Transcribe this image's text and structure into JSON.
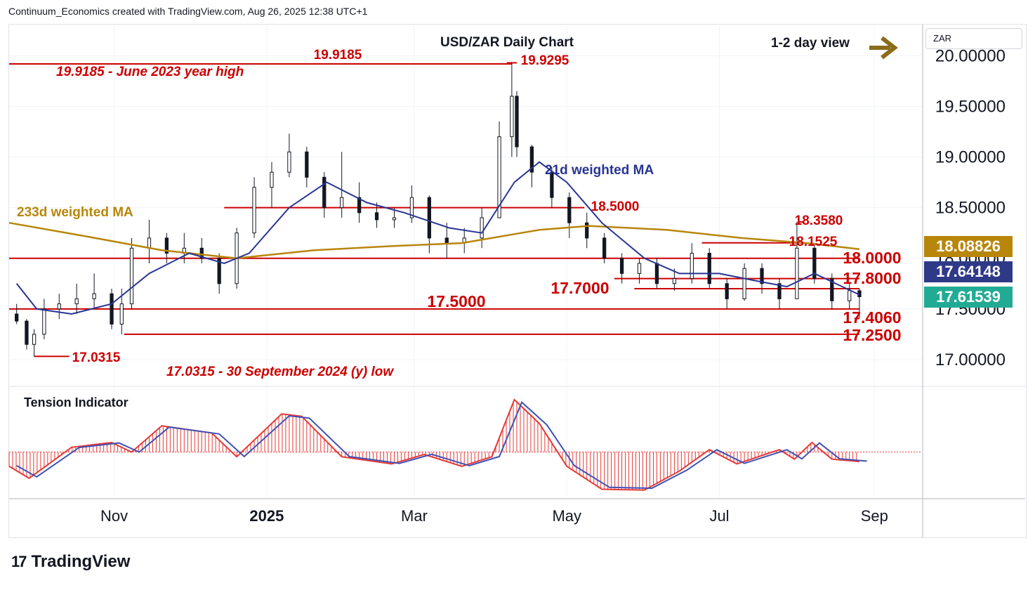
{
  "header": {
    "text": "Continuum_Economics created with TradingView.com, Aug 26, 2025 12:38 UTC+1"
  },
  "currency_box": {
    "label": "ZAR"
  },
  "footer": {
    "brand": "TradingView",
    "mark": "17"
  },
  "view": {
    "label": "1-2 day view",
    "arrow_color": "#8a6d1a"
  },
  "colors": {
    "bull": "#26a69a",
    "candle": "#131722",
    "ma21": "#283593",
    "ma233": "#b8860b",
    "level": "#cc0000",
    "tension_hist": "#e53935",
    "tension_line": "#3f51b5",
    "tag_233": "#b8860b",
    "tag_21": "#2e3a87",
    "tag_last": "#22ab94"
  },
  "price_tags": {
    "ma233": {
      "value": "18.08826",
      "price": 18.08826
    },
    "ma21": {
      "value": "17.64148",
      "price": 17.64148
    },
    "last": {
      "value": "17.61539",
      "price": 17.61539
    }
  },
  "chart_data": [
    {
      "type": "candlestick",
      "title": "USD/ZAR Daily Chart",
      "y_axis": {
        "ticks": [
          20.0,
          19.5,
          19.0,
          18.5,
          18.0,
          17.5,
          17.0
        ],
        "tick_labels": [
          "20.00000",
          "19.50000",
          "19.00000",
          "18.50000",
          "18.00000",
          "17.50000",
          "17.00000"
        ],
        "range": [
          16.75,
          20.3
        ],
        "position": "right"
      },
      "x_axis": {
        "labels": [
          "Nov",
          "2025",
          "Mar",
          "May",
          "Jul",
          "Sep"
        ],
        "dates": [
          "2024-11-01",
          "2025-01-01",
          "2025-03-01",
          "2025-05-01",
          "2025-07-01",
          "2025-09-01"
        ],
        "range": [
          "2024-09-20",
          "2025-09-20"
        ]
      },
      "candles_approx": [
        {
          "date": "2024-09-23",
          "open": 17.45,
          "high": 17.55,
          "low": 17.35,
          "close": 17.38
        },
        {
          "date": "2024-09-27",
          "open": 17.38,
          "high": 17.4,
          "low": 17.1,
          "close": 17.15
        },
        {
          "date": "2024-09-30",
          "open": 17.15,
          "high": 17.3,
          "low": 17.03,
          "close": 17.25
        },
        {
          "date": "2024-10-04",
          "open": 17.25,
          "high": 17.6,
          "low": 17.2,
          "close": 17.5
        },
        {
          "date": "2024-10-10",
          "open": 17.5,
          "high": 17.65,
          "low": 17.4,
          "close": 17.55
        },
        {
          "date": "2024-10-17",
          "open": 17.55,
          "high": 17.75,
          "low": 17.45,
          "close": 17.6
        },
        {
          "date": "2024-10-24",
          "open": 17.6,
          "high": 17.85,
          "low": 17.5,
          "close": 17.65
        },
        {
          "date": "2024-10-31",
          "open": 17.65,
          "high": 17.7,
          "low": 17.3,
          "close": 17.35
        },
        {
          "date": "2024-11-04",
          "open": 17.35,
          "high": 17.7,
          "low": 17.25,
          "close": 17.55
        },
        {
          "date": "2024-11-08",
          "open": 17.55,
          "high": 18.2,
          "low": 17.5,
          "close": 18.1
        },
        {
          "date": "2024-11-15",
          "open": 18.1,
          "high": 18.38,
          "low": 17.95,
          "close": 18.2
        },
        {
          "date": "2024-11-22",
          "open": 18.2,
          "high": 18.25,
          "low": 17.95,
          "close": 18.05
        },
        {
          "date": "2024-11-29",
          "open": 18.05,
          "high": 18.25,
          "low": 17.95,
          "close": 18.1
        },
        {
          "date": "2024-12-06",
          "open": 18.1,
          "high": 18.2,
          "low": 17.95,
          "close": 18.0
        },
        {
          "date": "2024-12-13",
          "open": 18.0,
          "high": 18.05,
          "low": 17.65,
          "close": 17.75
        },
        {
          "date": "2024-12-20",
          "open": 17.75,
          "high": 18.3,
          "low": 17.7,
          "close": 18.25
        },
        {
          "date": "2024-12-27",
          "open": 18.25,
          "high": 18.8,
          "low": 18.2,
          "close": 18.7
        },
        {
          "date": "2025-01-03",
          "open": 18.7,
          "high": 18.95,
          "low": 18.5,
          "close": 18.85
        },
        {
          "date": "2025-01-10",
          "open": 18.85,
          "high": 19.23,
          "low": 18.8,
          "close": 19.05
        },
        {
          "date": "2025-01-17",
          "open": 19.05,
          "high": 19.1,
          "low": 18.7,
          "close": 18.8
        },
        {
          "date": "2025-01-24",
          "open": 18.8,
          "high": 18.85,
          "low": 18.4,
          "close": 18.5
        },
        {
          "date": "2025-01-31",
          "open": 18.5,
          "high": 19.05,
          "low": 18.4,
          "close": 18.6
        },
        {
          "date": "2025-02-07",
          "open": 18.6,
          "high": 18.75,
          "low": 18.35,
          "close": 18.45
        },
        {
          "date": "2025-02-14",
          "open": 18.45,
          "high": 18.55,
          "low": 18.3,
          "close": 18.38
        },
        {
          "date": "2025-02-21",
          "open": 18.38,
          "high": 18.5,
          "low": 18.3,
          "close": 18.4
        },
        {
          "date": "2025-02-28",
          "open": 18.4,
          "high": 18.72,
          "low": 18.35,
          "close": 18.6
        },
        {
          "date": "2025-03-07",
          "open": 18.6,
          "high": 18.62,
          "low": 18.05,
          "close": 18.2
        },
        {
          "date": "2025-03-14",
          "open": 18.2,
          "high": 18.35,
          "low": 18.0,
          "close": 18.15
        },
        {
          "date": "2025-03-21",
          "open": 18.15,
          "high": 18.3,
          "low": 18.05,
          "close": 18.2
        },
        {
          "date": "2025-03-28",
          "open": 18.2,
          "high": 18.5,
          "low": 18.1,
          "close": 18.4
        },
        {
          "date": "2025-04-04",
          "open": 18.4,
          "high": 19.35,
          "low": 18.4,
          "close": 19.2
        },
        {
          "date": "2025-04-09",
          "open": 19.2,
          "high": 19.93,
          "low": 19.0,
          "close": 19.6
        },
        {
          "date": "2025-04-11",
          "open": 19.6,
          "high": 19.65,
          "low": 19.0,
          "close": 19.1
        },
        {
          "date": "2025-04-17",
          "open": 19.1,
          "high": 19.12,
          "low": 18.7,
          "close": 18.85
        },
        {
          "date": "2025-04-25",
          "open": 18.85,
          "high": 18.9,
          "low": 18.5,
          "close": 18.6
        },
        {
          "date": "2025-05-02",
          "open": 18.6,
          "high": 18.65,
          "low": 18.2,
          "close": 18.35
        },
        {
          "date": "2025-05-09",
          "open": 18.35,
          "high": 18.45,
          "low": 18.1,
          "close": 18.2
        },
        {
          "date": "2025-05-16",
          "open": 18.2,
          "high": 18.25,
          "low": 17.95,
          "close": 18.0
        },
        {
          "date": "2025-05-23",
          "open": 18.0,
          "high": 18.05,
          "low": 17.75,
          "close": 17.85
        },
        {
          "date": "2025-05-30",
          "open": 17.85,
          "high": 18.0,
          "low": 17.75,
          "close": 17.95
        },
        {
          "date": "2025-06-06",
          "open": 17.95,
          "high": 18.0,
          "low": 17.7,
          "close": 17.75
        },
        {
          "date": "2025-06-13",
          "open": 17.75,
          "high": 17.9,
          "low": 17.68,
          "close": 17.8
        },
        {
          "date": "2025-06-20",
          "open": 17.8,
          "high": 18.15,
          "low": 17.75,
          "close": 18.05
        },
        {
          "date": "2025-06-27",
          "open": 18.05,
          "high": 18.1,
          "low": 17.7,
          "close": 17.75
        },
        {
          "date": "2025-07-04",
          "open": 17.75,
          "high": 17.8,
          "low": 17.5,
          "close": 17.6
        },
        {
          "date": "2025-07-11",
          "open": 17.6,
          "high": 17.95,
          "low": 17.58,
          "close": 17.9
        },
        {
          "date": "2025-07-18",
          "open": 17.9,
          "high": 17.95,
          "low": 17.65,
          "close": 17.75
        },
        {
          "date": "2025-07-25",
          "open": 17.75,
          "high": 17.8,
          "low": 17.5,
          "close": 17.6
        },
        {
          "date": "2025-08-01",
          "open": 17.6,
          "high": 18.36,
          "low": 17.6,
          "close": 18.1
        },
        {
          "date": "2025-08-08",
          "open": 18.1,
          "high": 18.15,
          "low": 17.75,
          "close": 17.8
        },
        {
          "date": "2025-08-15",
          "open": 17.8,
          "high": 17.85,
          "low": 17.5,
          "close": 17.58
        },
        {
          "date": "2025-08-22",
          "open": 17.58,
          "high": 17.75,
          "low": 17.5,
          "close": 17.68
        },
        {
          "date": "2025-08-26",
          "open": 17.68,
          "high": 17.7,
          "low": 17.41,
          "close": 17.62
        }
      ],
      "ma21_approx": [
        {
          "date": "2024-09-23",
          "value": 17.75
        },
        {
          "date": "2024-10-01",
          "value": 17.5
        },
        {
          "date": "2024-10-15",
          "value": 17.45
        },
        {
          "date": "2024-10-31",
          "value": 17.55
        },
        {
          "date": "2024-11-15",
          "value": 17.85
        },
        {
          "date": "2024-12-01",
          "value": 18.05
        },
        {
          "date": "2024-12-15",
          "value": 17.95
        },
        {
          "date": "2024-12-25",
          "value": 18.05
        },
        {
          "date": "2025-01-10",
          "value": 18.5
        },
        {
          "date": "2025-01-25",
          "value": 18.75
        },
        {
          "date": "2025-02-10",
          "value": 18.55
        },
        {
          "date": "2025-02-25",
          "value": 18.45
        },
        {
          "date": "2025-03-15",
          "value": 18.3
        },
        {
          "date": "2025-03-28",
          "value": 18.25
        },
        {
          "date": "2025-04-10",
          "value": 18.75
        },
        {
          "date": "2025-04-20",
          "value": 18.95
        },
        {
          "date": "2025-05-01",
          "value": 18.75
        },
        {
          "date": "2025-05-15",
          "value": 18.35
        },
        {
          "date": "2025-06-01",
          "value": 18.0
        },
        {
          "date": "2025-06-15",
          "value": 17.85
        },
        {
          "date": "2025-07-01",
          "value": 17.85
        },
        {
          "date": "2025-07-15",
          "value": 17.78
        },
        {
          "date": "2025-07-28",
          "value": 17.72
        },
        {
          "date": "2025-08-08",
          "value": 17.85
        },
        {
          "date": "2025-08-26",
          "value": 17.64
        }
      ],
      "ma233_approx": [
        {
          "date": "2024-09-20",
          "value": 18.35
        },
        {
          "date": "2024-10-20",
          "value": 18.22
        },
        {
          "date": "2024-11-20",
          "value": 18.08
        },
        {
          "date": "2024-12-20",
          "value": 18.0
        },
        {
          "date": "2025-01-20",
          "value": 18.08
        },
        {
          "date": "2025-02-20",
          "value": 18.12
        },
        {
          "date": "2025-03-20",
          "value": 18.15
        },
        {
          "date": "2025-04-20",
          "value": 18.28
        },
        {
          "date": "2025-05-10",
          "value": 18.32
        },
        {
          "date": "2025-06-10",
          "value": 18.28
        },
        {
          "date": "2025-07-10",
          "value": 18.2
        },
        {
          "date": "2025-08-05",
          "value": 18.15
        },
        {
          "date": "2025-08-26",
          "value": 18.09
        }
      ],
      "levels": [
        {
          "price": 19.9185,
          "label": "19.9185",
          "from": "2024-09-20",
          "to": "2025-04-09"
        },
        {
          "price": 19.9295,
          "label": "19.9295",
          "from": "2025-04-07",
          "to": "2025-04-11"
        },
        {
          "price": 18.5,
          "label": "18.5000",
          "from": "2024-12-15",
          "to": "2025-05-08"
        },
        {
          "price": 18.358,
          "label": "18.3580",
          "from": "2025-08-02",
          "to": "2025-08-04"
        },
        {
          "price": 18.1525,
          "label": "18.1525",
          "from": "2025-06-24",
          "to": "2025-08-04"
        },
        {
          "price": 18.0,
          "label": "18.0000",
          "from": "2024-09-20",
          "to": "2025-08-26"
        },
        {
          "price": 17.8,
          "label": "17.8000",
          "from": "2025-05-20",
          "to": "2025-08-26"
        },
        {
          "price": 17.7,
          "label": "17.7000",
          "from": "2025-05-28",
          "to": "2025-08-26"
        },
        {
          "price": 17.5,
          "label": "17.5000",
          "from": "2024-09-20",
          "to": "2025-08-26"
        },
        {
          "price": 17.406,
          "label": "17.4060",
          "from": "2025-08-24",
          "to": "2025-08-26"
        },
        {
          "price": 17.25,
          "label": "17.2500",
          "from": "2024-11-05",
          "to": "2025-08-26"
        },
        {
          "price": 17.0315,
          "label": "17.0315",
          "from": "2024-09-30",
          "to": "2024-10-14"
        }
      ],
      "annotations": [
        {
          "text": "19.9185 - June 2023 year high",
          "color": "#cc0000"
        },
        {
          "text": "17.0315 - 30 September 2024 (y) low",
          "color": "#cc0000"
        },
        {
          "text": "21d weighted MA",
          "color": "#283593"
        },
        {
          "text": "233d weighted MA",
          "color": "#b8860b"
        }
      ]
    },
    {
      "type": "area",
      "title": "Tension Indicator",
      "series": [
        {
          "name": "",
          "values_approx": [
            {
              "date": "2024-09-20",
              "value": -0.3
            },
            {
              "date": "2024-09-28",
              "value": -0.55
            },
            {
              "date": "2024-10-15",
              "value": 0.1
            },
            {
              "date": "2024-10-31",
              "value": 0.2
            },
            {
              "date": "2024-11-08",
              "value": 0.0
            },
            {
              "date": "2024-11-20",
              "value": 0.55
            },
            {
              "date": "2024-12-10",
              "value": 0.4
            },
            {
              "date": "2024-12-20",
              "value": -0.1
            },
            {
              "date": "2025-01-07",
              "value": 0.8
            },
            {
              "date": "2025-01-15",
              "value": 0.75
            },
            {
              "date": "2025-01-31",
              "value": -0.1
            },
            {
              "date": "2025-02-20",
              "value": -0.25
            },
            {
              "date": "2025-03-05",
              "value": -0.05
            },
            {
              "date": "2025-03-20",
              "value": -0.3
            },
            {
              "date": "2025-04-01",
              "value": -0.1
            },
            {
              "date": "2025-04-10",
              "value": 1.1
            },
            {
              "date": "2025-04-20",
              "value": 0.6
            },
            {
              "date": "2025-05-01",
              "value": -0.3
            },
            {
              "date": "2025-05-15",
              "value": -0.78
            },
            {
              "date": "2025-06-01",
              "value": -0.8
            },
            {
              "date": "2025-06-15",
              "value": -0.4
            },
            {
              "date": "2025-06-27",
              "value": 0.05
            },
            {
              "date": "2025-07-08",
              "value": -0.25
            },
            {
              "date": "2025-07-25",
              "value": 0.05
            },
            {
              "date": "2025-07-31",
              "value": -0.15
            },
            {
              "date": "2025-08-07",
              "value": 0.2
            },
            {
              "date": "2025-08-15",
              "value": -0.15
            },
            {
              "date": "2025-08-26",
              "value": -0.2
            }
          ]
        }
      ],
      "y_range": [
        -0.95,
        1.35
      ]
    }
  ]
}
